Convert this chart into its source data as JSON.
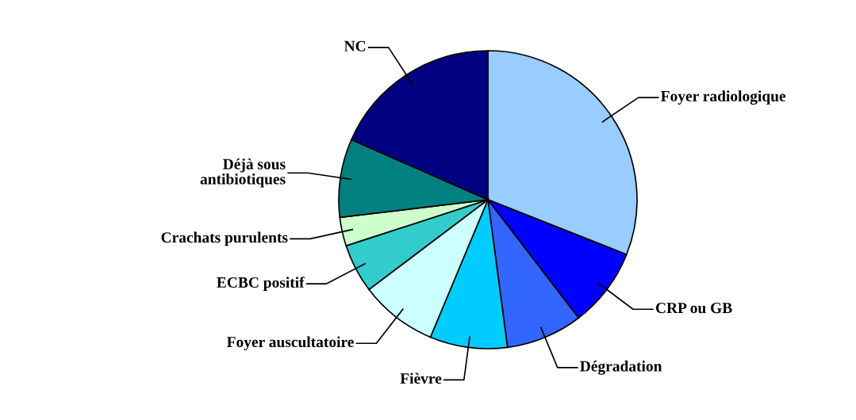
{
  "chart_data": {
    "type": "pie",
    "categories": [
      "Foyer radiologique",
      "CRP ou GB",
      "Dégradation",
      "Fièvre",
      "Foyer auscultatoire",
      "ECBC positif",
      "Crachats purulents",
      "Déjà sous\nantibiotiques",
      "NC"
    ],
    "values": [
      31,
      8.6,
      8.3,
      8.4,
      8.4,
      5.3,
      3.1,
      8.5,
      18.4
    ],
    "colors": [
      "#99ccff",
      "#0000ff",
      "#3366ff",
      "#00ccff",
      "#ccffff",
      "#33cccc",
      "#ccffcc",
      "#008080",
      "#000080"
    ]
  }
}
